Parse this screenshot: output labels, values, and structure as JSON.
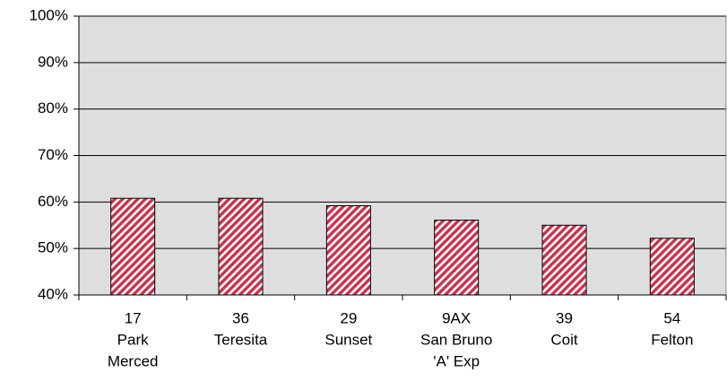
{
  "chart_data": {
    "type": "bar",
    "categories": [
      [
        "17",
        "Park",
        "Merced"
      ],
      [
        "36",
        "Teresita"
      ],
      [
        "29",
        "Sunset"
      ],
      [
        "9AX",
        "San Bruno",
        "'A' Exp"
      ],
      [
        "39",
        "Coit"
      ],
      [
        "54",
        "Felton"
      ]
    ],
    "values": [
      60.8,
      60.8,
      59.2,
      56.1,
      55.0,
      52.2
    ],
    "color": "#c8334f",
    "ylim": [
      40,
      100
    ],
    "yticks": [
      {
        "value": 40,
        "label": "40%"
      },
      {
        "value": 50,
        "label": "50%"
      },
      {
        "value": 60,
        "label": "60%"
      },
      {
        "value": 70,
        "label": "70%"
      },
      {
        "value": 80,
        "label": "80%"
      },
      {
        "value": 90,
        "label": "90%"
      },
      {
        "value": 100,
        "label": "100%"
      }
    ],
    "grid": true
  }
}
